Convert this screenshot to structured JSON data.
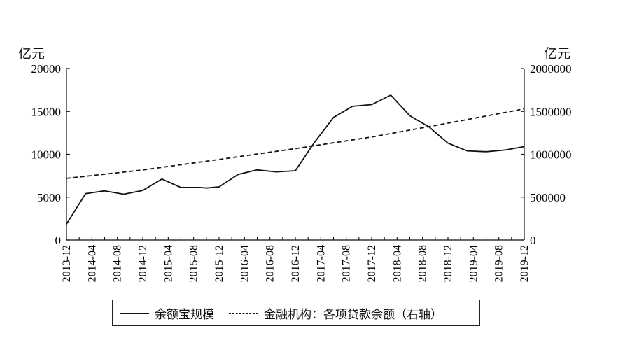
{
  "chart_data": {
    "type": "line",
    "left_unit": "亿元",
    "right_unit": "亿元",
    "x": [
      "2013-12",
      "2014-02",
      "2014-04",
      "2014-06",
      "2014-08",
      "2014-10",
      "2014-12",
      "2015-02",
      "2015-04",
      "2015-06",
      "2015-08",
      "2015-10",
      "2015-12",
      "2016-02",
      "2016-04",
      "2016-06",
      "2016-08",
      "2016-10",
      "2016-12",
      "2017-02",
      "2017-04",
      "2017-06",
      "2017-08",
      "2017-10",
      "2017-12",
      "2018-02",
      "2018-04",
      "2018-06",
      "2018-08",
      "2018-10",
      "2018-12",
      "2019-02",
      "2019-04",
      "2019-06",
      "2019-08",
      "2019-10",
      "2019-12"
    ],
    "x_tick_labels": [
      "2013-12",
      "2014-04",
      "2014-08",
      "2014-12",
      "2015-04",
      "2015-08",
      "2015-12",
      "2016-04",
      "2016-08",
      "2016-12",
      "2017-04",
      "2017-08",
      "2017-12",
      "2018-04",
      "2018-08",
      "2018-12",
      "2019-04",
      "2019-08",
      "2019-12"
    ],
    "left_axis": {
      "ylim": [
        0,
        20000
      ],
      "ticks": [
        "0",
        "5000",
        "10000",
        "15000",
        "20000"
      ]
    },
    "right_axis": {
      "ylim": [
        0,
        2000000
      ],
      "ticks": [
        "0",
        "500000",
        "1000000",
        "1500000",
        "2000000"
      ]
    },
    "series": [
      {
        "name": "余额宝规模",
        "axis": "left",
        "style": "solid",
        "x": [
          "2013-12",
          "2014-03",
          "2014-06",
          "2014-09",
          "2014-12",
          "2015-03",
          "2015-06",
          "2015-09",
          "2015-10",
          "2015-12",
          "2016-03",
          "2016-06",
          "2016-09",
          "2016-12",
          "2017-03",
          "2017-06",
          "2017-09",
          "2017-12",
          "2018-03",
          "2018-06",
          "2018-09",
          "2018-12",
          "2019-03",
          "2019-06",
          "2019-09",
          "2019-12"
        ],
        "values": [
          1853,
          5413,
          5742,
          5349,
          5789,
          7117,
          6134,
          6133,
          6062,
          6207,
          7649,
          8180,
          7951,
          8083,
          11400,
          14300,
          15600,
          15798,
          16900,
          14500,
          13200,
          11300,
          10400,
          10300,
          10500,
          10900
        ]
      },
      {
        "name": "金融机构：各项贷款余额（右轴）",
        "axis": "right",
        "style": "dashed",
        "x": [
          "2013-12",
          "2014-12",
          "2015-12",
          "2016-12",
          "2017-12",
          "2018-12",
          "2019-12"
        ],
        "values": [
          718961,
          816770,
          939540,
          1066040,
          1201321,
          1362967,
          1530000
        ]
      }
    ],
    "legend_position": "bottom",
    "grid": false
  }
}
